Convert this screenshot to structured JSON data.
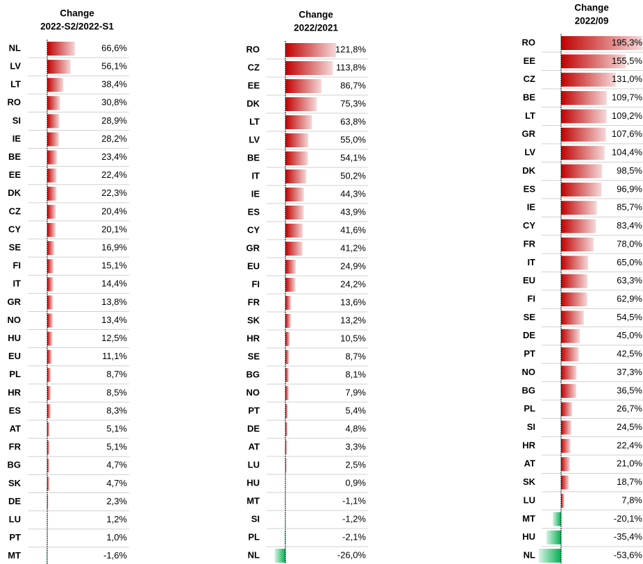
{
  "chart_data": [
    {
      "type": "bar",
      "title": "Change",
      "subtitle": "2022-S2/2022-S1",
      "color": "#c00000",
      "negative_color": "#00b050",
      "categories": [
        "NL",
        "LV",
        "LT",
        "RO",
        "SI",
        "IE",
        "BE",
        "EE",
        "DK",
        "CZ",
        "CY",
        "SE",
        "FI",
        "IT",
        "GR",
        "NO",
        "HU",
        "EU",
        "PL",
        "HR",
        "ES",
        "AT",
        "FR",
        "BG",
        "SK",
        "DE",
        "LU",
        "PT",
        "MT"
      ],
      "values": [
        66.6,
        56.1,
        38.4,
        30.8,
        28.9,
        28.2,
        23.4,
        22.4,
        22.3,
        20.4,
        20.1,
        16.9,
        15.1,
        14.4,
        13.8,
        13.4,
        12.5,
        11.1,
        8.7,
        8.5,
        8.3,
        5.1,
        5.1,
        4.7,
        4.7,
        2.3,
        1.2,
        1.0,
        -1.6
      ],
      "value_labels": [
        "66,6%",
        "56,1%",
        "38,4%",
        "30,8%",
        "28,9%",
        "28,2%",
        "23,4%",
        "22,4%",
        "22,3%",
        "20,4%",
        "20,1%",
        "16,9%",
        "15,1%",
        "14,4%",
        "13,8%",
        "13,4%",
        "12,5%",
        "11,1%",
        "8,7%",
        "8,5%",
        "8,3%",
        "5,1%",
        "5,1%",
        "4,7%",
        "4,7%",
        "2,3%",
        "1,2%",
        "1,0%",
        "-1,6%"
      ]
    },
    {
      "type": "bar",
      "title": "Change",
      "subtitle": "2022/2021",
      "color": "#c00000",
      "negative_color": "#00b050",
      "categories": [
        "RO",
        "CZ",
        "EE",
        "DK",
        "LT",
        "LV",
        "BE",
        "IT",
        "IE",
        "ES",
        "CY",
        "GR",
        "EU",
        "FI",
        "FR",
        "SK",
        "HR",
        "SE",
        "BG",
        "NO",
        "PT",
        "DE",
        "AT",
        "LU",
        "HU",
        "MT",
        "SI",
        "PL",
        "NL"
      ],
      "values": [
        121.8,
        113.8,
        86.7,
        75.3,
        63.8,
        55.0,
        54.1,
        50.2,
        44.3,
        43.9,
        41.6,
        41.2,
        24.9,
        24.2,
        13.6,
        13.2,
        10.5,
        8.7,
        8.1,
        7.9,
        5.4,
        4.8,
        3.3,
        2.5,
        0.9,
        -1.1,
        -1.2,
        -2.1,
        -26.0
      ],
      "value_labels": [
        "121,8%",
        "113,8%",
        "86,7%",
        "75,3%",
        "63,8%",
        "55,0%",
        "54,1%",
        "50,2%",
        "44,3%",
        "43,9%",
        "41,6%",
        "41,2%",
        "24,9%",
        "24,2%",
        "13,6%",
        "13,2%",
        "10,5%",
        "8,7%",
        "8,1%",
        "7,9%",
        "5,4%",
        "4,8%",
        "3,3%",
        "2,5%",
        "0,9%",
        "-1,1%",
        "-1,2%",
        "-2,1%",
        "-26,0%"
      ]
    },
    {
      "type": "bar",
      "title": "Change",
      "subtitle": "2022/09",
      "color": "#c00000",
      "negative_color": "#00b050",
      "categories": [
        "RO",
        "EE",
        "CZ",
        "BE",
        "LT",
        "GR",
        "LV",
        "DK",
        "ES",
        "IE",
        "CY",
        "FR",
        "IT",
        "EU",
        "FI",
        "SE",
        "DE",
        "PT",
        "NO",
        "BG",
        "PL",
        "SI",
        "HR",
        "AT",
        "SK",
        "LU",
        "MT",
        "HU",
        "NL"
      ],
      "values": [
        195.3,
        155.5,
        131.0,
        109.7,
        109.2,
        107.6,
        104.4,
        98.5,
        96.9,
        85.7,
        83.4,
        78.0,
        65.0,
        63.3,
        62.9,
        54.5,
        45.0,
        42.5,
        37.3,
        36.5,
        26.7,
        24.5,
        22.4,
        21.0,
        18.7,
        7.8,
        -20.1,
        -35.4,
        -53.6
      ],
      "value_labels": [
        "195,3%",
        "155,5%",
        "131,0%",
        "109,7%",
        "109,2%",
        "107,6%",
        "104,4%",
        "98,5%",
        "96,9%",
        "85,7%",
        "83,4%",
        "78,0%",
        "65,0%",
        "63,3%",
        "62,9%",
        "54,5%",
        "45,0%",
        "42,5%",
        "37,3%",
        "36,5%",
        "26,7%",
        "24,5%",
        "22,4%",
        "21,0%",
        "18,7%",
        "7,8%",
        "-20,1%",
        "-35,4%",
        "-53,6%"
      ]
    }
  ]
}
